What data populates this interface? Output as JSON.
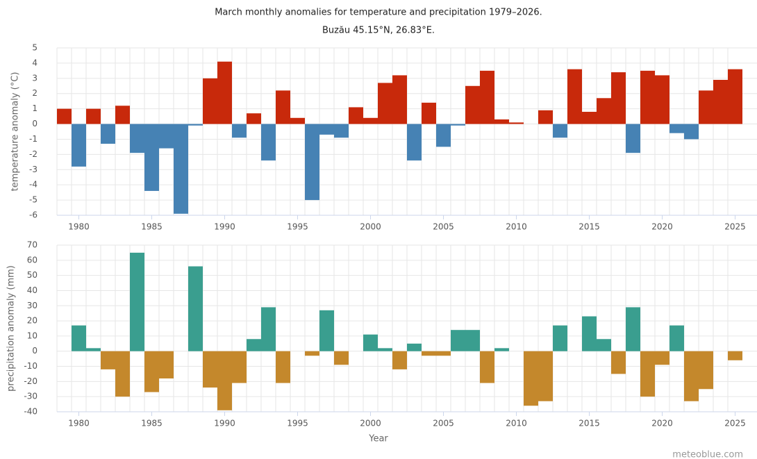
{
  "chart_data": [
    {
      "type": "bar",
      "title": "March monthly anomalies for temperature and precipitation 1979–2026.",
      "subtitle": "Buzău 45.15°N, 26.83°E.",
      "ylabel": "temperature anomaly (°C)",
      "x": [
        1979,
        1980,
        1981,
        1982,
        1983,
        1984,
        1985,
        1986,
        1987,
        1988,
        1989,
        1990,
        1991,
        1992,
        1993,
        1994,
        1995,
        1996,
        1997,
        1998,
        1999,
        2000,
        2001,
        2002,
        2003,
        2004,
        2005,
        2006,
        2007,
        2008,
        2009,
        2010,
        2011,
        2012,
        2013,
        2014,
        2015,
        2016,
        2017,
        2018,
        2019,
        2020,
        2021,
        2022,
        2023,
        2024,
        2025
      ],
      "values": [
        1.0,
        -2.8,
        1.0,
        -1.3,
        1.2,
        -1.9,
        -4.4,
        -1.6,
        -5.9,
        -0.1,
        3.0,
        4.1,
        -0.9,
        0.7,
        -2.4,
        2.2,
        0.4,
        -5.0,
        -0.7,
        -0.9,
        1.1,
        0.4,
        2.7,
        3.2,
        -2.4,
        1.4,
        -1.5,
        -0.1,
        2.5,
        3.5,
        0.3,
        0.1,
        null,
        0.9,
        -0.9,
        3.6,
        0.8,
        1.7,
        3.4,
        -1.9,
        3.5,
        3.2,
        -0.6,
        -1.0,
        2.2,
        2.9,
        3.6
      ],
      "positive_color": "#c8290b",
      "negative_color": "#4682b4",
      "xlim": [
        1978.5,
        2026.5
      ],
      "xticks": [
        1980,
        1985,
        1990,
        1995,
        2000,
        2005,
        2010,
        2015,
        2020,
        2025
      ],
      "ylim": [
        -6,
        5
      ],
      "yticks": [
        -6,
        -5,
        -4,
        -3,
        -2,
        -1,
        0,
        1,
        2,
        3,
        4,
        5
      ],
      "grid": true
    },
    {
      "type": "bar",
      "ylabel": "precipitation anomaly (mm)",
      "xlabel": "Year",
      "credit": "meteoblue.com",
      "x": [
        1979,
        1980,
        1981,
        1982,
        1983,
        1984,
        1985,
        1986,
        1987,
        1988,
        1989,
        1990,
        1991,
        1992,
        1993,
        1994,
        1995,
        1996,
        1997,
        1998,
        1999,
        2000,
        2001,
        2002,
        2003,
        2004,
        2005,
        2006,
        2007,
        2008,
        2009,
        2010,
        2011,
        2012,
        2013,
        2014,
        2015,
        2016,
        2017,
        2018,
        2019,
        2020,
        2021,
        2022,
        2023,
        2024,
        2025
      ],
      "values": [
        0,
        17,
        2,
        -12,
        -30,
        65,
        -27,
        -18,
        0,
        56,
        -24,
        -39,
        -21,
        8,
        29,
        -21,
        0,
        -3,
        27,
        -9,
        0,
        11,
        2,
        -12,
        5,
        -3,
        -3,
        14,
        14,
        -21,
        2,
        0,
        -36,
        -33,
        17,
        0,
        23,
        8,
        -15,
        29,
        -30,
        -9,
        17,
        -33,
        -25,
        0,
        -6
      ],
      "positive_color": "#3a9e8f",
      "negative_color": "#c4882c",
      "xlim": [
        1978.5,
        2026.5
      ],
      "xticks": [
        1980,
        1985,
        1990,
        1995,
        2000,
        2005,
        2010,
        2015,
        2020,
        2025
      ],
      "ylim": [
        -40,
        70
      ],
      "yticks": [
        -40,
        -30,
        -20,
        -10,
        0,
        10,
        20,
        30,
        40,
        50,
        60,
        70
      ],
      "grid": true
    }
  ]
}
